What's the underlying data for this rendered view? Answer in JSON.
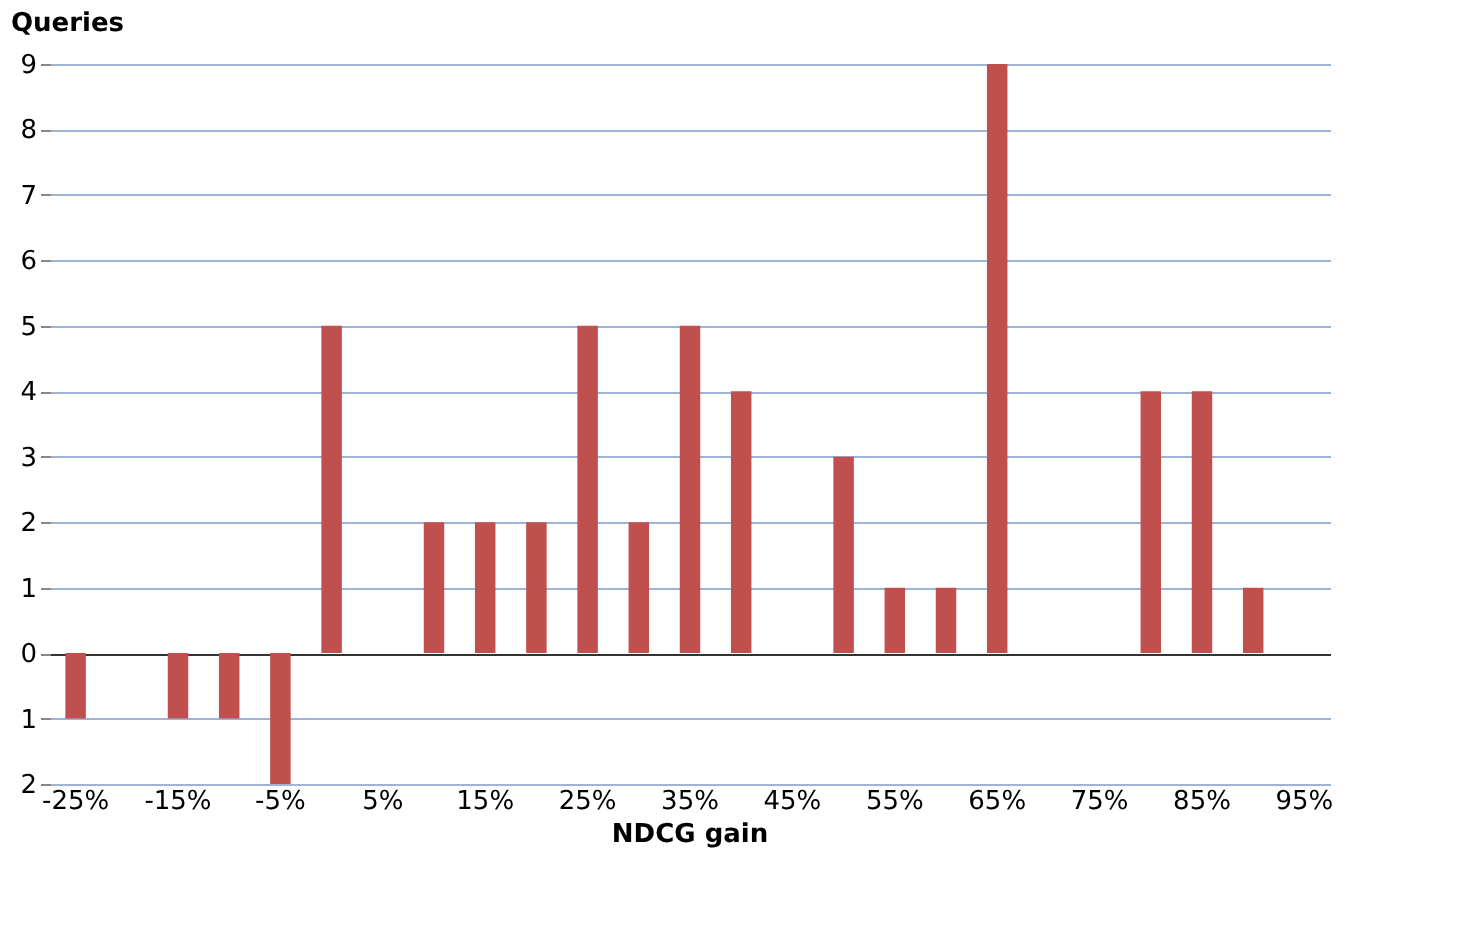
{
  "chart_data": {
    "type": "bar",
    "ylabel": "Queries",
    "xlabel": "NDCG gain",
    "categories": [
      "-25%",
      null,
      "-15%",
      null,
      "-5%",
      null,
      "5%",
      null,
      "15%",
      null,
      "25%",
      null,
      "35%",
      null,
      "45%",
      null,
      "55%",
      null,
      "65%",
      null,
      "75%",
      null,
      "85%",
      null,
      "95%"
    ],
    "values": [
      -1,
      null,
      -1,
      -1,
      -2,
      5,
      null,
      2,
      2,
      2,
      5,
      2,
      5,
      4,
      null,
      3,
      1,
      1,
      9,
      null,
      null,
      4,
      4,
      1,
      null
    ],
    "color": "#c0504d",
    "ylim": [
      -2,
      9
    ],
    "yticks": [
      {
        "value": -2,
        "label": "2"
      },
      {
        "value": -1,
        "label": "1"
      },
      0,
      1,
      2,
      3,
      4,
      5,
      6,
      7,
      8,
      9
    ],
    "grid": "y"
  }
}
